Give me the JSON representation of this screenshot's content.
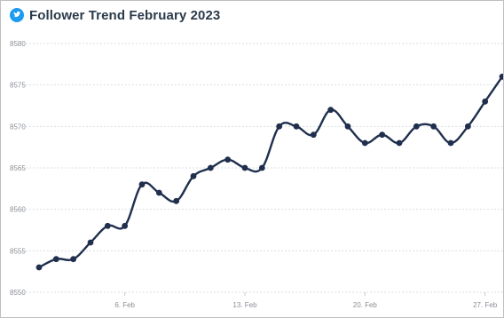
{
  "header": {
    "title": "Follower Trend February 2023",
    "icon": "twitter-bird-icon"
  },
  "colors": {
    "line": "#1f2f4d",
    "grid": "#d9dde2",
    "icon": "#1d9bf0"
  },
  "chart_data": {
    "type": "line",
    "title": "Follower Trend February 2023",
    "xlabel": "",
    "ylabel": "",
    "grid": true,
    "ylim": [
      8550,
      8580
    ],
    "y_ticks": [
      "8550",
      "8555",
      "8560",
      "8565",
      "8570",
      "8575",
      "8580"
    ],
    "x_ticks": [
      {
        "day": 6,
        "label": "6. Feb"
      },
      {
        "day": 13,
        "label": "13. Feb"
      },
      {
        "day": 20,
        "label": "20. Feb"
      },
      {
        "day": 27,
        "label": "27. Feb"
      }
    ],
    "x": [
      1,
      2,
      3,
      4,
      5,
      6,
      7,
      8,
      9,
      10,
      11,
      12,
      13,
      14,
      15,
      16,
      17,
      18,
      19,
      20,
      21,
      22,
      23,
      24,
      25,
      26,
      27,
      28
    ],
    "series": [
      {
        "values": [
          8553,
          8554,
          8554,
          8556,
          8558,
          8558,
          8563,
          8562,
          8561,
          8564,
          8565,
          8566,
          8565,
          8565,
          8570,
          8570,
          8569,
          8572,
          8570,
          8568,
          8569,
          8568,
          8570,
          8570,
          8568,
          8570,
          8573,
          8576
        ]
      }
    ]
  }
}
